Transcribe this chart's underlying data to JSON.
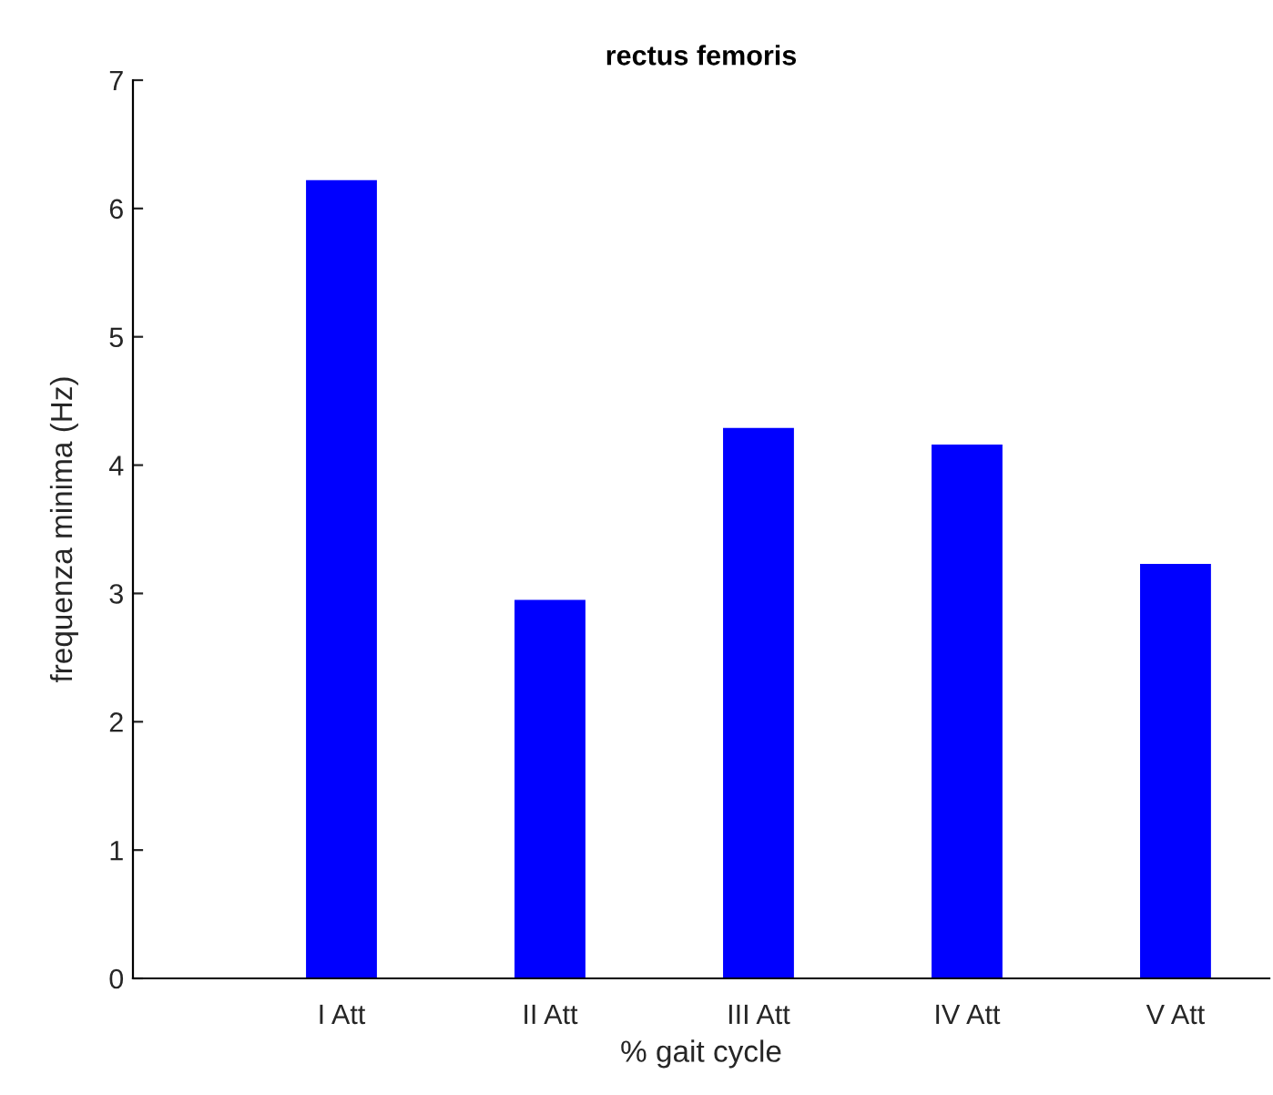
{
  "chart_data": {
    "type": "bar",
    "title": "rectus femoris",
    "xlabel": "% gait cycle",
    "ylabel": "frequenza minima (Hz)",
    "categories": [
      "I Att",
      "II Att",
      "III Att",
      "IV Att",
      "V Att"
    ],
    "values": [
      6.22,
      2.95,
      4.29,
      4.16,
      3.23
    ],
    "color": "#0000ff",
    "ylim": [
      0,
      7
    ],
    "yticks": [
      0,
      1,
      2,
      3,
      4,
      5,
      6,
      7
    ],
    "grid": false,
    "legend": false
  }
}
